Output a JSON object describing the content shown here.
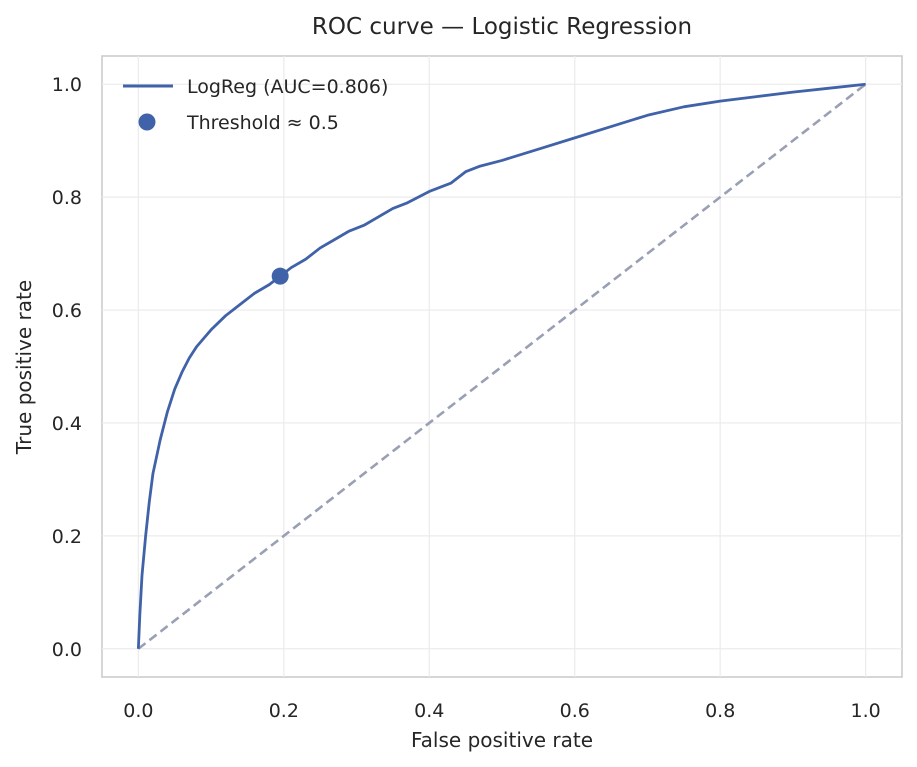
{
  "chart_data": {
    "type": "line",
    "title": "ROC curve — Logistic Regression",
    "xlabel": "False positive rate",
    "ylabel": "True positive rate",
    "xlim": [
      -0.05,
      1.05
    ],
    "ylim": [
      -0.05,
      1.05
    ],
    "xticks": [
      0.0,
      0.2,
      0.4,
      0.6,
      0.8,
      1.0
    ],
    "yticks": [
      0.0,
      0.2,
      0.4,
      0.6,
      0.8,
      1.0
    ],
    "xtick_labels": [
      "0.0",
      "0.2",
      "0.4",
      "0.6",
      "0.8",
      "1.0"
    ],
    "ytick_labels": [
      "0.0",
      "0.2",
      "0.4",
      "0.6",
      "0.8",
      "1.0"
    ],
    "grid": true,
    "legend_position": "top-left",
    "series": [
      {
        "name": "LogReg (AUC=0.806)",
        "color": "#4062a8",
        "x": [
          0.0,
          0.002,
          0.005,
          0.01,
          0.015,
          0.02,
          0.03,
          0.04,
          0.05,
          0.06,
          0.07,
          0.08,
          0.09,
          0.1,
          0.12,
          0.14,
          0.16,
          0.18,
          0.195,
          0.21,
          0.23,
          0.25,
          0.27,
          0.29,
          0.31,
          0.33,
          0.35,
          0.37,
          0.4,
          0.43,
          0.45,
          0.47,
          0.5,
          0.55,
          0.6,
          0.65,
          0.7,
          0.75,
          0.8,
          0.85,
          0.9,
          0.95,
          1.0
        ],
        "y": [
          0.0,
          0.06,
          0.13,
          0.2,
          0.26,
          0.31,
          0.37,
          0.42,
          0.46,
          0.49,
          0.515,
          0.535,
          0.55,
          0.565,
          0.59,
          0.61,
          0.63,
          0.645,
          0.66,
          0.675,
          0.69,
          0.71,
          0.725,
          0.74,
          0.75,
          0.765,
          0.78,
          0.79,
          0.81,
          0.825,
          0.845,
          0.855,
          0.865,
          0.885,
          0.905,
          0.925,
          0.945,
          0.96,
          0.97,
          0.978,
          0.986,
          0.993,
          1.0
        ]
      },
      {
        "name": "",
        "color": "#9aa0b4",
        "style": "dashed",
        "x": [
          0.0,
          1.0
        ],
        "y": [
          0.0,
          1.0
        ]
      }
    ],
    "points": [
      {
        "name": "Threshold ≈ 0.5",
        "x": 0.195,
        "y": 0.66,
        "color": "#4062a8"
      }
    ]
  }
}
